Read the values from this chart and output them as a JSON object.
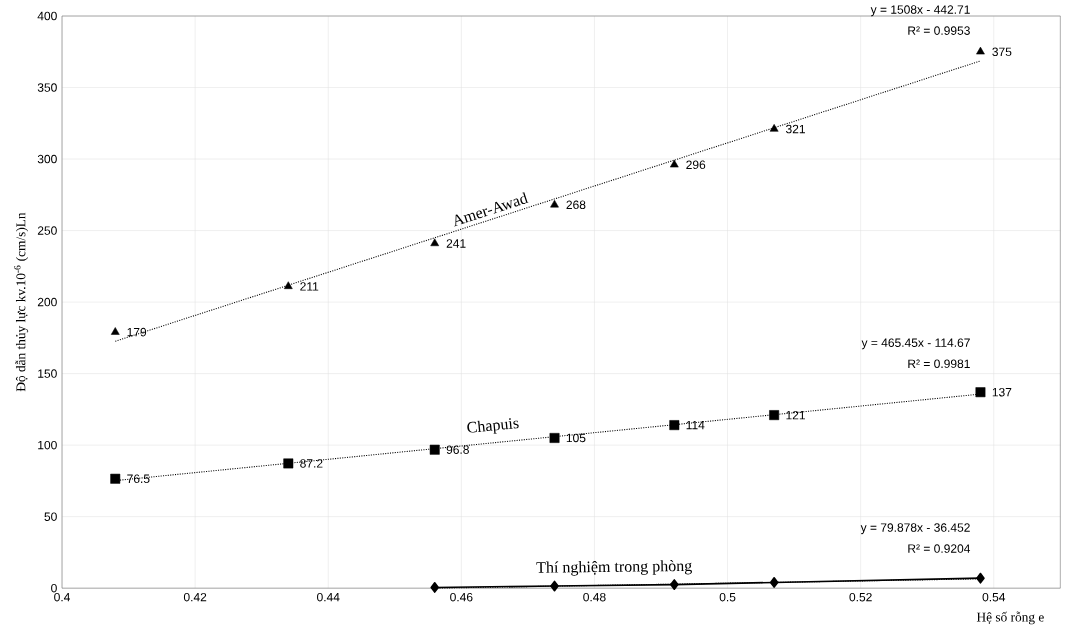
{
  "chart_data": {
    "type": "scatter",
    "xlabel": "Hệ số rỗng e",
    "ylabel": "Độ dẫn thủy lực kv.10$^{-6}$ (cm/s)Ln",
    "xlim": [
      0.4,
      0.55
    ],
    "xticks": [
      0.4,
      0.42,
      0.44,
      0.46,
      0.48,
      0.5,
      0.52,
      0.54
    ],
    "ylim": [
      0,
      400
    ],
    "yticks": [
      0,
      50,
      100,
      150,
      200,
      250,
      300,
      350,
      400
    ],
    "grid": true,
    "legend": false,
    "series": [
      {
        "name": "Amer-Awad",
        "marker": "triangle",
        "color": "#000000",
        "x": [
          0.408,
          0.434,
          0.456,
          0.474,
          0.492,
          0.507,
          0.538
        ],
        "values": [
          179,
          211,
          241,
          268,
          296,
          321,
          375
        ],
        "value_labels": [
          "179",
          "211",
          "241",
          "268",
          "296",
          "321",
          "375"
        ]
      },
      {
        "name": "Chapuis",
        "marker": "square",
        "color": "#000000",
        "x": [
          0.408,
          0.434,
          0.456,
          0.474,
          0.492,
          0.507,
          0.538
        ],
        "values": [
          76.5,
          87.2,
          96.8,
          105,
          114,
          121,
          137
        ],
        "value_labels": [
          "76.5",
          "87.2",
          "96.8",
          "105",
          "114",
          "121",
          "137"
        ]
      },
      {
        "name": "Thí nghiệm trong phòng",
        "type": "line",
        "marker": "diamond",
        "line_style": "solid",
        "color": "#000000",
        "x": [
          0.456,
          0.474,
          0.492,
          0.507,
          0.538
        ],
        "values": [
          0.5,
          1.5,
          2.5,
          4,
          7
        ]
      },
      {
        "type": "line",
        "marker": "none",
        "line_style": "dotted",
        "color": "#000000",
        "x": [
          0.408,
          0.538
        ],
        "values": [
          172.6,
          368.6
        ]
      },
      {
        "type": "line",
        "marker": "none",
        "line_style": "dotted",
        "color": "#000000",
        "x": [
          0.408,
          0.538
        ],
        "values": [
          75.2,
          135.7
        ]
      },
      {
        "type": "line",
        "marker": "none",
        "line_style": "dotted",
        "color": "#000000",
        "x": [
          0.456,
          0.538
        ],
        "values": [
          0.0,
          6.5
        ]
      }
    ],
    "annotations": [
      "y = 1508x - 442.71",
      "R² = 0.9953",
      "y = 465.45x - 114.67",
      "R² = 0.9981",
      "y = 79.878x - 36.452",
      "R² = 0.9204"
    ]
  }
}
